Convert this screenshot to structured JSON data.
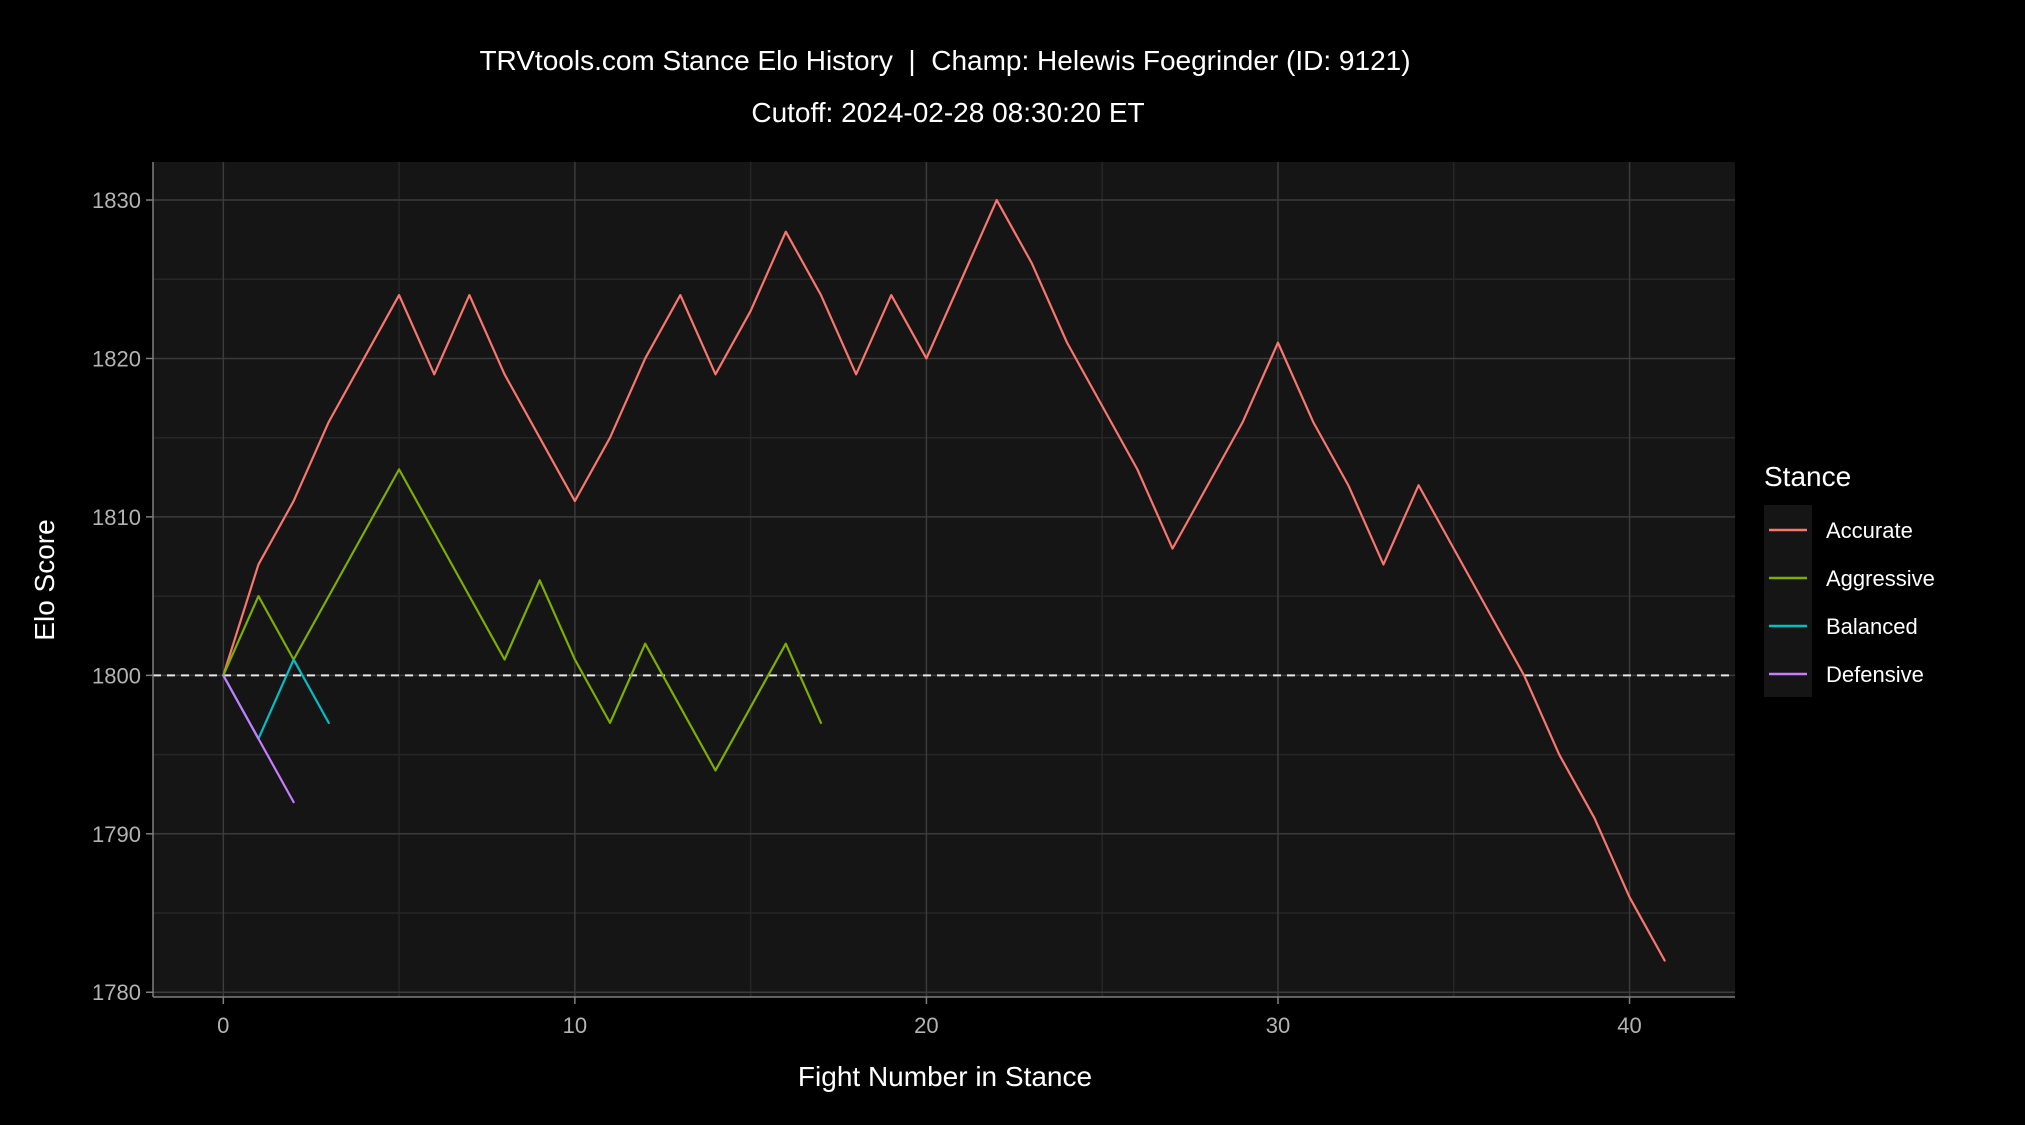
{
  "chart_data": {
    "type": "line",
    "title": "TRVtools.com Stance Elo History  |  Champ: Helewis Foegrinder (ID: 9121)",
    "subtitle": "Cutoff: 2024-02-28 08:30:20 ET",
    "xlabel": "Fight Number in Stance",
    "ylabel": "Elo Score",
    "xlim": [
      -2,
      43
    ],
    "ylim": [
      1779.7,
      1832.4
    ],
    "x_ticks": [
      0,
      10,
      20,
      30,
      40
    ],
    "y_ticks": [
      1780,
      1790,
      1800,
      1810,
      1820,
      1830
    ],
    "reference_line": {
      "y": 1800,
      "style": "dashed"
    },
    "grid": true,
    "legend": {
      "title": "Stance",
      "position": "right"
    },
    "series": [
      {
        "name": "Accurate",
        "color": "#F8766D",
        "x": [
          0,
          1,
          2,
          3,
          4,
          5,
          6,
          7,
          8,
          9,
          10,
          11,
          12,
          13,
          14,
          15,
          16,
          17,
          18,
          19,
          20,
          21,
          22,
          23,
          24,
          25,
          26,
          27,
          28,
          29,
          30,
          31,
          32,
          33,
          34,
          35,
          36,
          37,
          38,
          39,
          40,
          41
        ],
        "values": [
          1800,
          1807,
          1811,
          1816,
          1820,
          1824,
          1819,
          1824,
          1819,
          1815,
          1811,
          1815,
          1820,
          1824,
          1819,
          1823,
          1828,
          1824,
          1819,
          1824,
          1820,
          1825,
          1830,
          1826,
          1821,
          1817,
          1813,
          1808,
          1812,
          1816,
          1821,
          1816,
          1812,
          1807,
          1812,
          1808,
          1804,
          1800,
          1795,
          1791,
          1786,
          1782
        ]
      },
      {
        "name": "Aggressive",
        "color": "#7CAE00",
        "x": [
          0,
          1,
          2,
          3,
          4,
          5,
          6,
          7,
          8,
          9,
          10,
          11,
          12,
          13,
          14,
          15,
          16,
          17
        ],
        "values": [
          1800,
          1805,
          1801,
          1805,
          1809,
          1813,
          1809,
          1805,
          1801,
          1806,
          1801,
          1797,
          1802,
          1798,
          1794,
          1798,
          1802,
          1797
        ]
      },
      {
        "name": "Balanced",
        "color": "#00BFC4",
        "x": [
          0,
          1,
          2,
          3
        ],
        "values": [
          1800,
          1796,
          1801,
          1797
        ]
      },
      {
        "name": "Defensive",
        "color": "#C77CFF",
        "x": [
          0,
          1,
          2
        ],
        "values": [
          1800,
          1796,
          1792
        ]
      }
    ]
  }
}
